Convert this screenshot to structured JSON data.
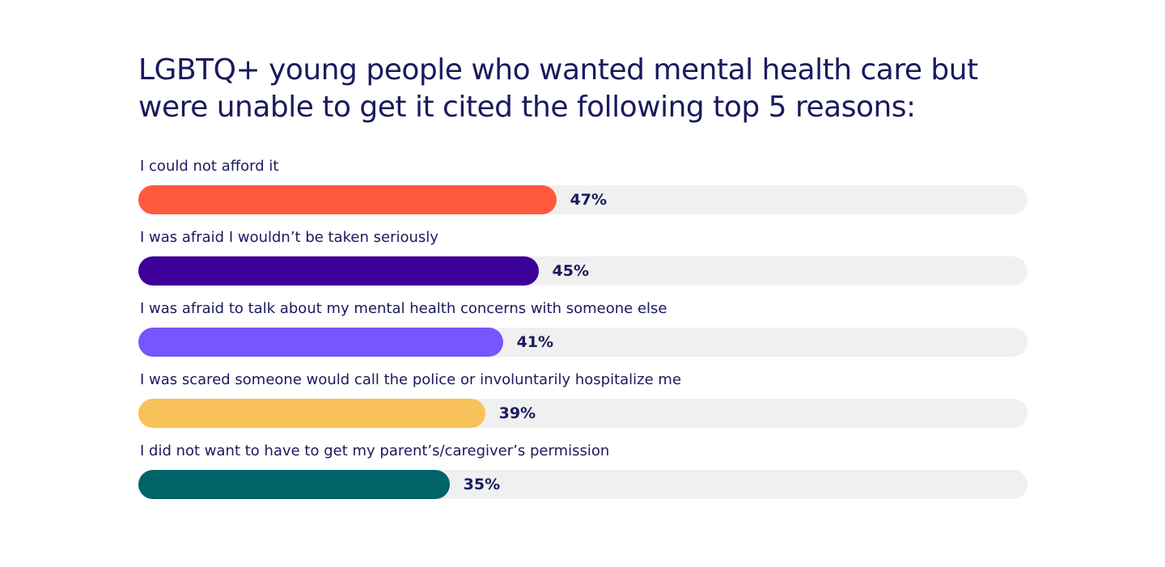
{
  "chart_data": {
    "type": "bar",
    "orientation": "horizontal",
    "title": "LGBTQ+ young people who wanted mental health care but were unable to get it cited the following top 5 reasons:",
    "categories": [
      "I could not afford it",
      "I was afraid I wouldn’t be taken seriously",
      "I was afraid to talk about my mental health concerns with someone else",
      "I was scared someone would call the police or involuntarily hospitalize me",
      "I did not want to have to get my parent’s/caregiver’s permission"
    ],
    "values": [
      47,
      45,
      41,
      39,
      35
    ],
    "value_labels": [
      "47%",
      "45%",
      "41%",
      "39%",
      "35%"
    ],
    "colors": [
      "#ff5a3c",
      "#3d0099",
      "#7755ff",
      "#f8c15a",
      "#006367"
    ],
    "track_color": "#f0f0f0",
    "xlim": [
      0,
      100
    ],
    "grid": false,
    "legend": "none"
  }
}
